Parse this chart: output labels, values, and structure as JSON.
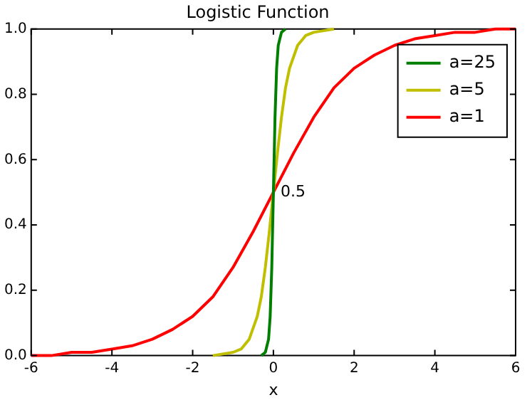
{
  "chart_data": {
    "type": "line",
    "title": "Logistic Function",
    "xlabel": "x",
    "xlim": [
      -6,
      6
    ],
    "xticks": [
      -6,
      -4,
      -2,
      0,
      2,
      4,
      6
    ],
    "ylim": [
      0,
      1
    ],
    "yticks": [
      {
        "value": 0,
        "label": "0.0"
      },
      {
        "value": 0.2,
        "label": "0.2"
      },
      {
        "value": 0.4,
        "label": "0.4"
      },
      {
        "value": 0.6,
        "label": "0.6"
      },
      {
        "value": 0.8,
        "label": "0.8"
      },
      {
        "value": 1,
        "label": "1.0"
      }
    ],
    "grid": false,
    "legend": "top right",
    "marker": "none",
    "line_style": "solid",
    "annotations": [
      {
        "text": "0.5",
        "x": 0,
        "y": 0.5
      }
    ],
    "series": [
      {
        "name": "a=25",
        "color": "#007f00",
        "x": [
          -0.3,
          -0.2,
          -0.12,
          -0.08,
          -0.04,
          0,
          0.04,
          0.08,
          0.12,
          0.2,
          0.3
        ],
        "values": [
          0,
          0.01,
          0.05,
          0.12,
          0.27,
          0.5,
          0.73,
          0.88,
          0.95,
          0.99,
          1
        ]
      },
      {
        "name": "a=5",
        "color": "#bfbf00",
        "x": [
          -1.5,
          -1,
          -0.8,
          -0.6,
          -0.4,
          -0.3,
          -0.2,
          -0.1,
          0,
          0.1,
          0.2,
          0.3,
          0.4,
          0.6,
          0.8,
          1,
          1.5
        ],
        "values": [
          0,
          0.01,
          0.02,
          0.05,
          0.12,
          0.18,
          0.27,
          0.38,
          0.5,
          0.62,
          0.73,
          0.82,
          0.88,
          0.95,
          0.98,
          0.99,
          1
        ]
      },
      {
        "name": "a=1",
        "color": "#ff0000",
        "x": [
          -6,
          -5.5,
          -5,
          -4.5,
          -4,
          -3.5,
          -3,
          -2.5,
          -2,
          -1.5,
          -1,
          -0.5,
          0,
          0.5,
          1,
          1.5,
          2,
          2.5,
          3,
          3.5,
          4,
          4.5,
          5,
          5.5,
          6
        ],
        "values": [
          0,
          0,
          0.01,
          0.01,
          0.02,
          0.03,
          0.05,
          0.08,
          0.12,
          0.18,
          0.27,
          0.38,
          0.5,
          0.62,
          0.73,
          0.82,
          0.88,
          0.92,
          0.95,
          0.97,
          0.98,
          0.99,
          0.99,
          1,
          1
        ]
      }
    ]
  }
}
